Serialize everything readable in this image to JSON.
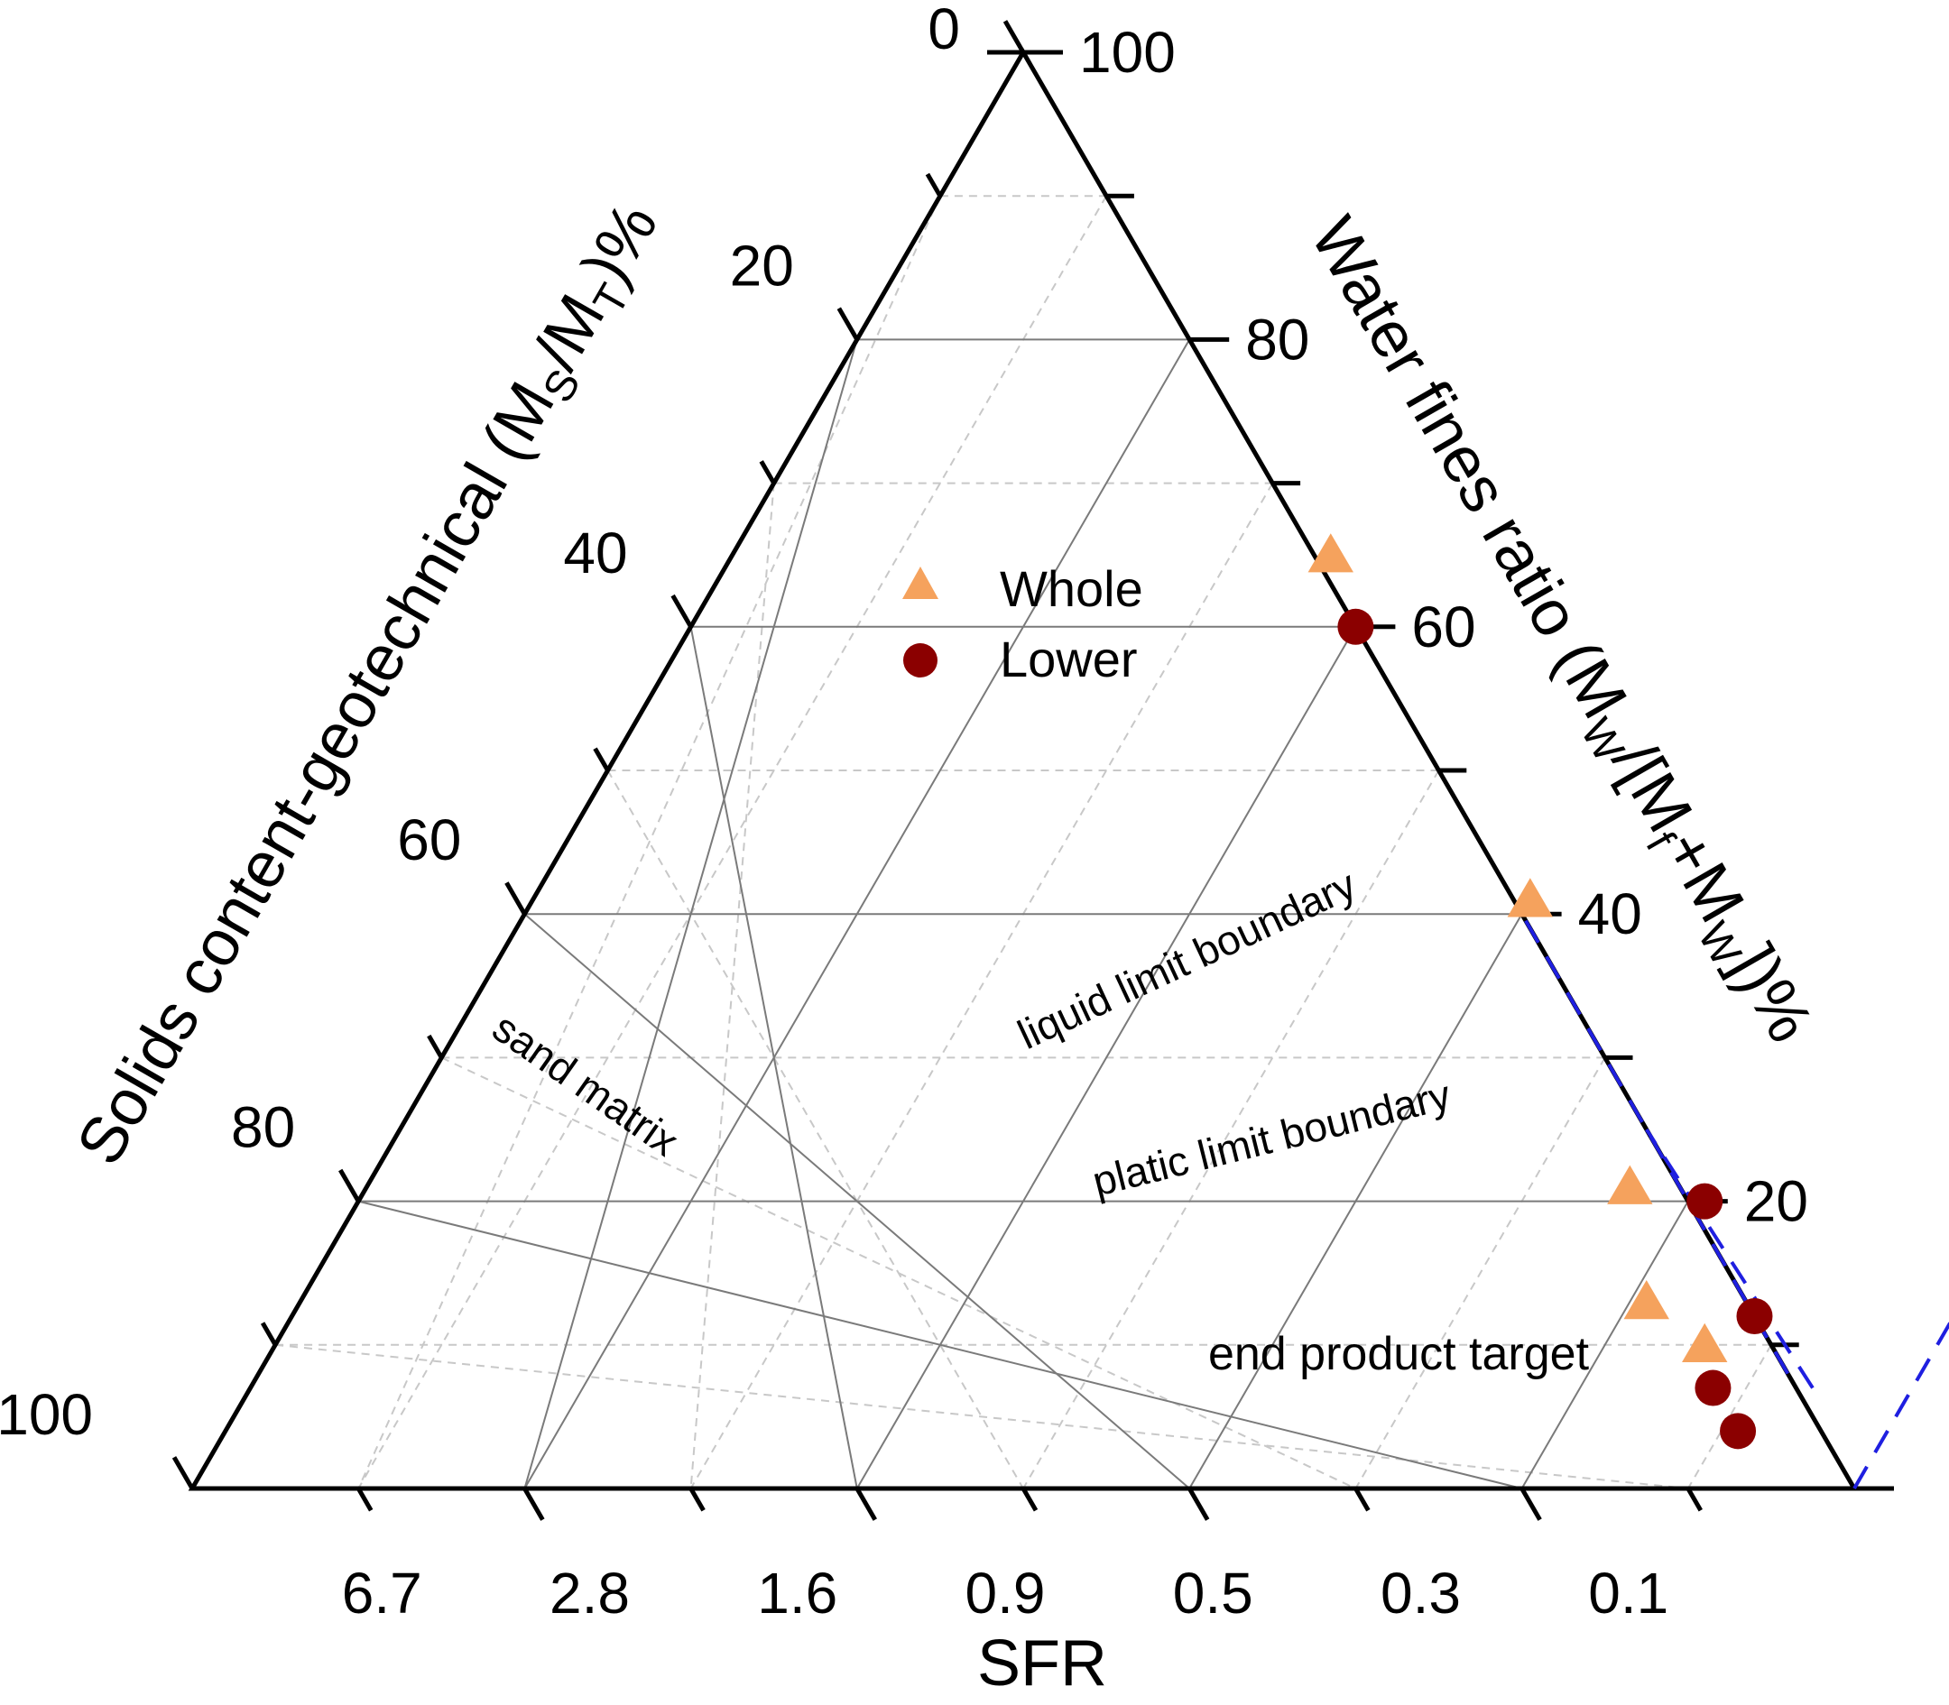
{
  "chart_data": {
    "type": "scatter",
    "subtype": "ternary",
    "axes": {
      "bottom": {
        "title": "SFR",
        "tick_labels": [
          "6.7",
          "2.8",
          "1.6",
          "0.9",
          "0.5",
          "0.3",
          "0.1"
        ]
      },
      "left": {
        "title_parts": {
          "pre": "Solids content-geotechnical (M",
          "sub1": "S",
          "mid": "/M",
          "sub2": "T",
          "post": ")%"
        },
        "ticks": [
          0,
          20,
          40,
          60,
          80,
          100
        ],
        "tick_labels": [
          "0",
          "20",
          "40",
          "60",
          "80",
          "100"
        ]
      },
      "right": {
        "title_parts": {
          "pre": "Water fines ratio (M",
          "sub1": "W",
          "mid": "/[M",
          "sub2": "f",
          "mid2": "+M",
          "sub3": "W",
          "post": "])%"
        },
        "ticks": [
          20,
          40,
          60,
          80,
          100
        ],
        "tick_labels": [
          "20",
          "40",
          "60",
          "80",
          "100"
        ]
      }
    },
    "grid": {
      "major_step": 20,
      "minor_step": 10
    },
    "series": [
      {
        "name": "Whole",
        "marker": "triangle",
        "color": "#F5A25D",
        "points": [
          {
            "solids": 35,
            "water_fines": 64
          },
          {
            "solids": 59,
            "water_fines": 40
          },
          {
            "solids": 79,
            "water_fines": 24
          },
          {
            "solids": 87,
            "water_fines": 19
          },
          {
            "solids": 90,
            "water_fines": 14
          }
        ]
      },
      {
        "name": "Lower",
        "marker": "circle",
        "color": "#8B0000",
        "points": [
          {
            "solids": 40,
            "water_fines": 60
          },
          {
            "solids": 88,
            "water_fines": 12
          },
          {
            "solids": 93,
            "water_fines": 12
          },
          {
            "solids": 96,
            "water_fines": 9
          },
          {
            "solids": 80,
            "water_fines": 19
          }
        ]
      }
    ],
    "boundary_color": "#1F1FE0",
    "boundaries": [
      {
        "name": "liquid limit boundary",
        "from": {
          "solids": 92,
          "water_fines": 8
        },
        "to": {
          "solids": 60,
          "water_fines": 40
        }
      },
      {
        "name": "plastic limit boundary",
        "from": {
          "solids": 93,
          "water_fines": 6
        },
        "to": {
          "solids": 75,
          "water_fines": 25
        }
      },
      {
        "name": "sand matrix",
        "from": {
          "solids": 100,
          "water_fines": 0
        },
        "to": {
          "solids": 72,
          "water_fines": 0
        }
      }
    ],
    "annotations": {
      "liquid": "liquid limit boundary",
      "plastic": "platic limit boundary",
      "sand": "sand matrix",
      "end": "end product target"
    },
    "legend": {
      "position": "upper-center",
      "entries": [
        "Whole",
        "Lower"
      ]
    }
  }
}
